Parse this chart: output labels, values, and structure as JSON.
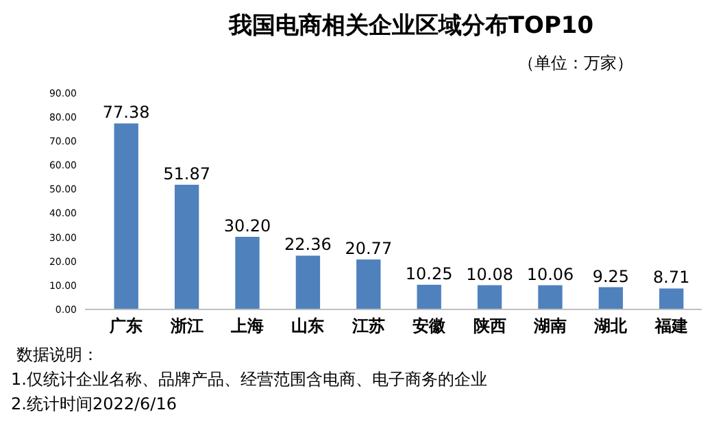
{
  "chart_data": {
    "type": "bar",
    "title": "我国电商相关企业区域分布TOP10",
    "subtitle": "（单位：万家）",
    "categories": [
      "广东",
      "浙江",
      "上海",
      "山东",
      "江苏",
      "安徽",
      "陕西",
      "湖南",
      "湖北",
      "福建"
    ],
    "values": [
      77.38,
      51.87,
      30.2,
      22.36,
      20.77,
      10.25,
      10.08,
      10.06,
      9.25,
      8.71
    ],
    "value_labels": [
      "77.38",
      "51.87",
      "30.20",
      "22.36",
      "20.77",
      "10.25",
      "10.08",
      "10.06",
      "9.25",
      "8.71"
    ],
    "color": "#4f81bd",
    "ylim": [
      0,
      90
    ],
    "yticks": [
      {
        "value": 0,
        "label": "0.00"
      },
      {
        "value": 10,
        "label": "10.00"
      },
      {
        "value": 20,
        "label": "20.00"
      },
      {
        "value": 30,
        "label": "30.00"
      },
      {
        "value": 40,
        "label": "40.00"
      },
      {
        "value": 50,
        "label": "50.00"
      },
      {
        "value": 60,
        "label": "60.00"
      },
      {
        "value": 70,
        "label": "70.00"
      },
      {
        "value": 80,
        "label": "80.00"
      },
      {
        "value": 90,
        "label": "90.00"
      }
    ],
    "grid": false,
    "annotations": [
      "数据说明：",
      "1.仅统计企业名称、品牌产品、经营范围含电商、电子商务的企业",
      "2.统计时间2022/6/16"
    ]
  }
}
